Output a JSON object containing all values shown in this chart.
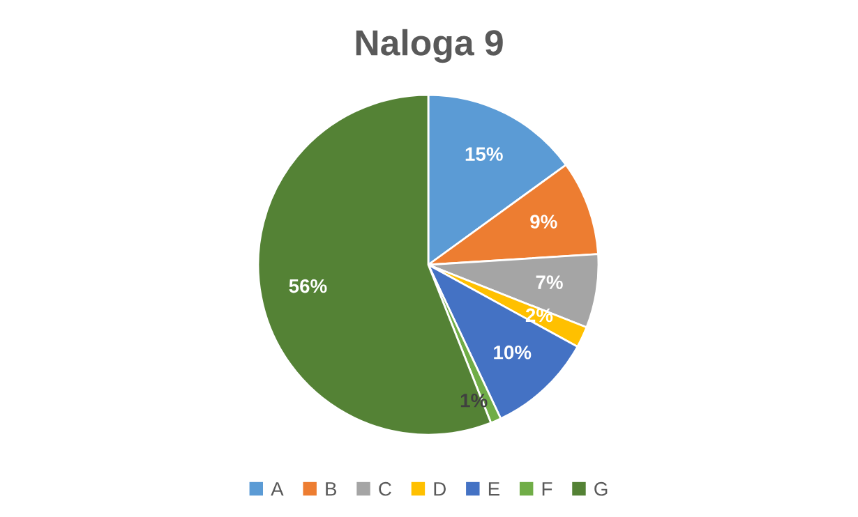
{
  "chart_data": {
    "type": "pie",
    "title": "Naloga 9",
    "categories": [
      "A",
      "B",
      "C",
      "D",
      "E",
      "F",
      "G"
    ],
    "values": [
      15,
      9,
      7,
      2,
      10,
      1,
      56
    ],
    "colors": [
      "#5b9bd5",
      "#ed7d31",
      "#a5a5a5",
      "#ffc000",
      "#4472c4",
      "#70ad47",
      "#548235"
    ],
    "value_labels": [
      "15%",
      "9%",
      "7%",
      "2%",
      "10%",
      "1%",
      "56%"
    ],
    "legend": "bottom"
  }
}
